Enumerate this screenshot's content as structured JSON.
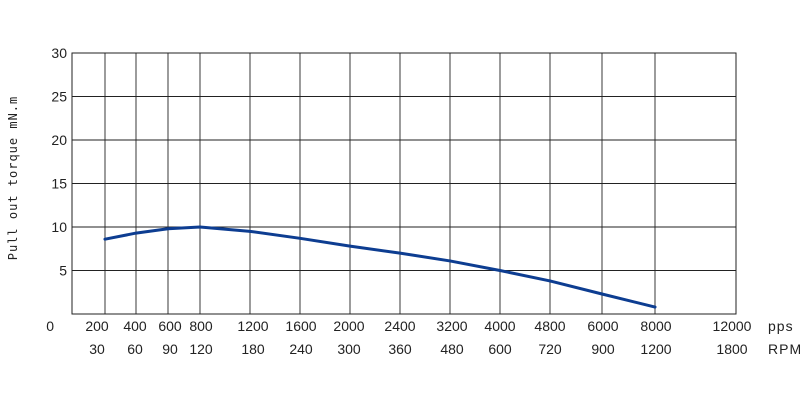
{
  "chart_data": {
    "type": "line",
    "ylabel": "Pull out torque mN.m",
    "ylim": [
      0,
      30
    ],
    "y_ticks": [
      "0",
      "5",
      "10",
      "15",
      "20",
      "25",
      "30"
    ],
    "x_ticks_pps": [
      "200",
      "400",
      "600",
      "800",
      "1200",
      "1600",
      "2000",
      "2400",
      "3200",
      "4000",
      "4800",
      "6000",
      "8000",
      "12000"
    ],
    "x_ticks_rpm": [
      "30",
      "60",
      "90",
      "120",
      "180",
      "240",
      "300",
      "360",
      "480",
      "600",
      "720",
      "900",
      "1200",
      "1800"
    ],
    "x_unit_pps": "pps",
    "x_unit_rpm": "RPM",
    "grid": true,
    "color": "#0d3d91",
    "series": [
      {
        "x": [
          "200",
          "400",
          "600",
          "800",
          "1200",
          "1600",
          "2000",
          "2400",
          "3200",
          "4000",
          "4800",
          "6000",
          "8000"
        ],
        "values": [
          8.6,
          9.3,
          9.8,
          10.0,
          9.5,
          8.7,
          7.8,
          7.0,
          6.1,
          5.0,
          3.8,
          2.3,
          0.8
        ]
      }
    ]
  }
}
